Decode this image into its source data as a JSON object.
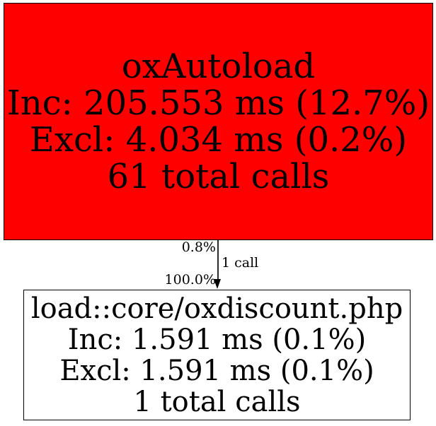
{
  "graph": {
    "type": "profiler-call-graph",
    "background": "#ffffff",
    "text_color": "#000000",
    "caller_node": {
      "name": "oxAutoload",
      "inc": "Inc: 205.553 ms (12.7%)",
      "excl": "Excl: 4.034 ms (0.2%)",
      "calls": "61 total calls",
      "fill": "#ff0000",
      "border_color": "#000000"
    },
    "callee_node": {
      "name": "load::core/oxdiscount.php",
      "inc": "Inc: 1.591 ms (0.1%)",
      "excl": "Excl: 1.591 ms (0.1%)",
      "calls": "1 total calls",
      "fill": "#ffffff",
      "border_color": "#000000"
    },
    "edge": {
      "source_pct": "0.8%",
      "calls": "1 call",
      "target_pct": "100.0%",
      "color": "#000000",
      "direction": "caller-to-callee"
    }
  }
}
